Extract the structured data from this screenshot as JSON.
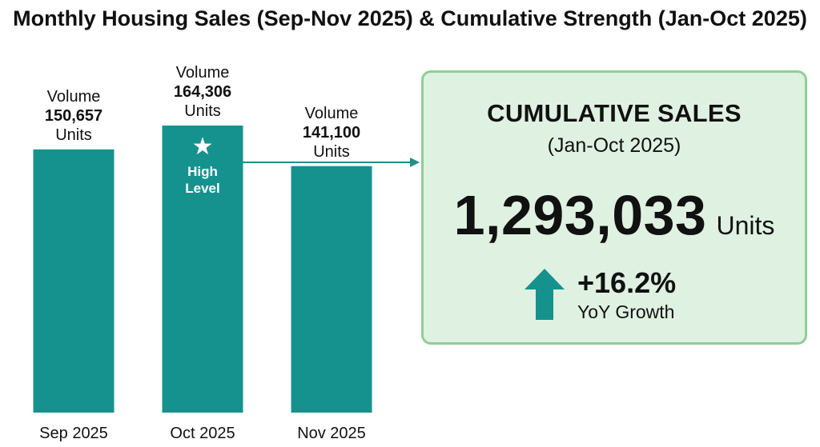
{
  "title": "Monthly Housing Sales (Sep-Nov 2025) & Cumulative Strength (Jan-Oct 2025)",
  "colors": {
    "bar": "#16928e",
    "panel_bg": "#dff1e1",
    "panel_border": "#8fcf94",
    "connector": "#1f8f8c"
  },
  "chart_data": {
    "type": "bar",
    "categories": [
      "Sep 2025",
      "Oct 2025",
      "Nov 2025"
    ],
    "values": [
      150657,
      164306,
      141100
    ],
    "labels": [
      {
        "top": "Volume",
        "value": "150,657",
        "unit": "Units"
      },
      {
        "top": "Volume",
        "value": "164,306",
        "unit": "Units"
      },
      {
        "top": "Volume",
        "value": "141,100",
        "unit": "Units"
      }
    ],
    "highlight": {
      "category": "Oct 2025",
      "icon": "star-icon",
      "text_line1": "High",
      "text_line2": "Level"
    },
    "title": "Monthly Housing Sales (Sep-Nov 2025) & Cumulative Strength (Jan-Oct 2025)",
    "xlabel": "",
    "ylabel": "",
    "grid": false
  },
  "cumulative": {
    "heading": "CUMULATIVE SALES",
    "period": "(Jan-Oct 2025)",
    "value": "1,293,033",
    "unit": "Units",
    "growth": "+16.2%",
    "growth_label": "YoY Growth",
    "growth_icon": "up-arrow-icon"
  }
}
